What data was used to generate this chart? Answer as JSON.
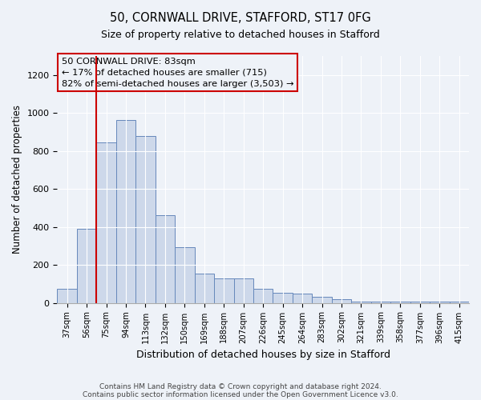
{
  "title1": "50, CORNWALL DRIVE, STAFFORD, ST17 0FG",
  "title2": "Size of property relative to detached houses in Stafford",
  "xlabel": "Distribution of detached houses by size in Stafford",
  "ylabel": "Number of detached properties",
  "categories": [
    "37sqm",
    "56sqm",
    "75sqm",
    "94sqm",
    "113sqm",
    "132sqm",
    "150sqm",
    "169sqm",
    "188sqm",
    "207sqm",
    "226sqm",
    "245sqm",
    "264sqm",
    "283sqm",
    "302sqm",
    "321sqm",
    "339sqm",
    "358sqm",
    "377sqm",
    "396sqm",
    "415sqm"
  ],
  "values": [
    75,
    390,
    845,
    965,
    880,
    460,
    295,
    155,
    130,
    130,
    75,
    55,
    50,
    30,
    20,
    5,
    5,
    5,
    5,
    5,
    5
  ],
  "bar_color": "#cdd8ea",
  "bar_edge_color": "#6688bb",
  "annotation_box_color": "#cc0000",
  "annotation_line1": "50 CORNWALL DRIVE: 83sqm",
  "annotation_line2": "← 17% of detached houses are smaller (715)",
  "annotation_line3": "82% of semi-detached houses are larger (3,503) →",
  "red_line_index": 1.5,
  "ylim": [
    0,
    1300
  ],
  "yticks": [
    0,
    200,
    400,
    600,
    800,
    1000,
    1200
  ],
  "footnote1": "Contains HM Land Registry data © Crown copyright and database right 2024.",
  "footnote2": "Contains public sector information licensed under the Open Government Licence v3.0.",
  "bg_color": "#eef2f8"
}
